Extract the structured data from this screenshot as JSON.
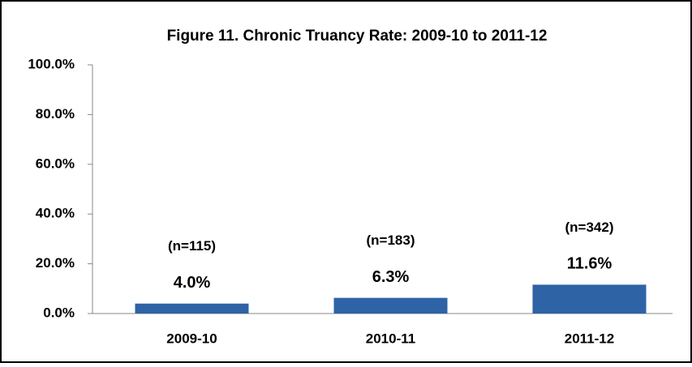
{
  "chart_data": {
    "type": "bar",
    "title": "Figure 11. Chronic Truancy Rate: 2009-10 to 2011-12",
    "categories": [
      "2009-10",
      "2010-11",
      "2011-12"
    ],
    "values": [
      4.0,
      6.3,
      11.6
    ],
    "value_labels": [
      "4.0%",
      "6.3%",
      "11.6%"
    ],
    "annotations": [
      "(n=115)",
      "(n=183)",
      "(n=342)"
    ],
    "color": "#2e63a6",
    "ylim": [
      0,
      100
    ],
    "yticks": [
      {
        "value": 0,
        "label": "0.0%"
      },
      {
        "value": 20,
        "label": "20.0%"
      },
      {
        "value": 40,
        "label": "40.0%"
      },
      {
        "value": 60,
        "label": "60.0%"
      },
      {
        "value": 80,
        "label": "80.0%"
      },
      {
        "value": 100,
        "label": "100.0%"
      }
    ],
    "grid": false
  }
}
